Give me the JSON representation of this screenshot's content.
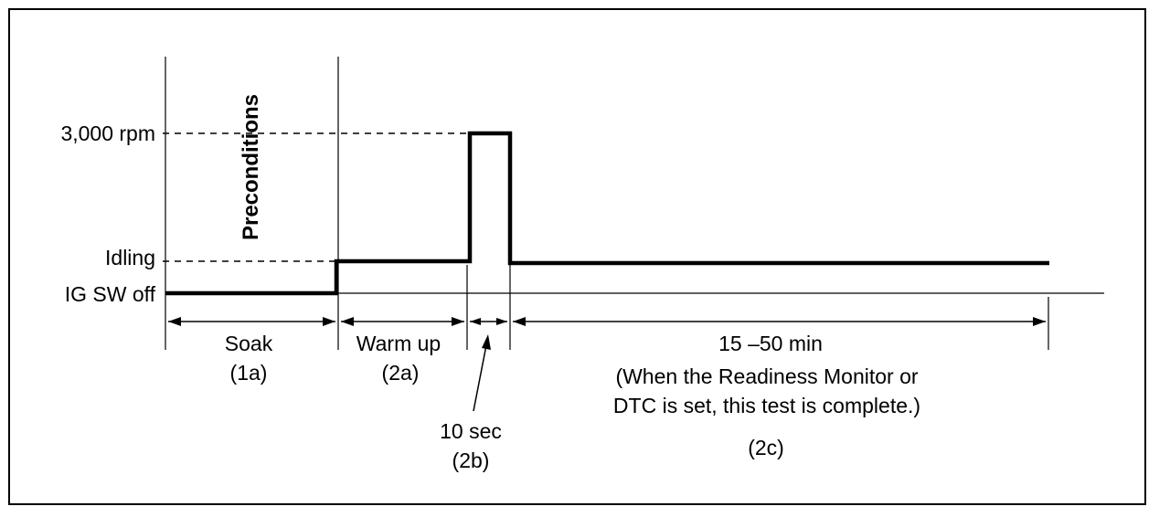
{
  "diagram": {
    "levels": {
      "high": "3,000 rpm",
      "idle": "Idling",
      "off": "IG SW off"
    },
    "preconditions_label": "Preconditions",
    "phases": [
      {
        "name": "Soak",
        "code": "(1a)"
      },
      {
        "name": "Warm up",
        "code": "(2a)"
      },
      {
        "name": "10 sec",
        "code": "(2b)"
      },
      {
        "name": "15 –50 min",
        "code": "(2c)"
      }
    ],
    "note_line1": "(When the Readiness Monitor or",
    "note_line2": "DTC is set, this test is complete.)"
  }
}
